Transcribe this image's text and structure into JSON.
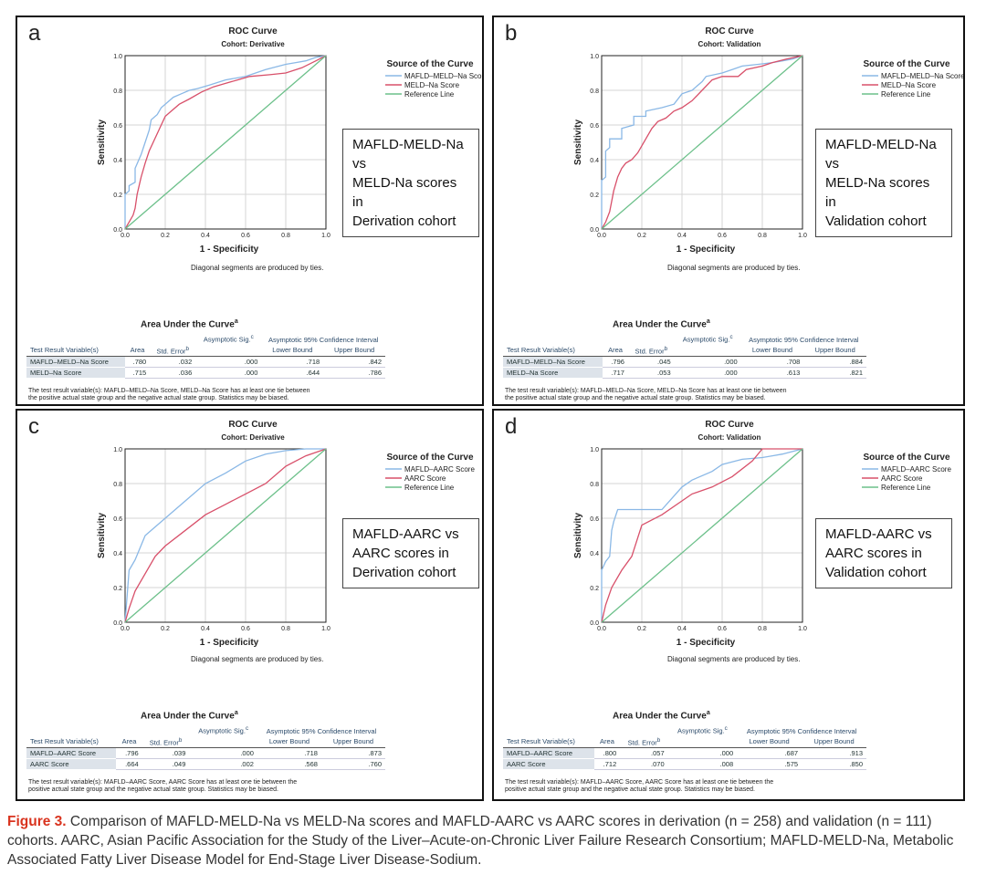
{
  "chart_data": [
    {
      "panel": "a",
      "type": "line",
      "title": "ROC Curve",
      "subtitle": "Cohort: Derivative",
      "xlabel": "1 - Specificity",
      "ylabel": "Sensitivity",
      "xlim": [
        0,
        1
      ],
      "ylim": [
        0,
        1
      ],
      "ticks": [
        "0.0",
        "0.2",
        "0.4",
        "0.6",
        "0.8",
        "1.0"
      ],
      "legend_title": "Source of the Curve",
      "note": "Diagonal segments are produced by ties.",
      "callout": [
        "MAFLD-MELD-Na vs",
        "MELD-Na scores in",
        "Derivation cohort"
      ],
      "series": [
        {
          "name": "MAFLD–MELD–Na Score",
          "color": "#8ab8e6",
          "x": [
            0,
            0,
            0.02,
            0.02,
            0.05,
            0.05,
            0.08,
            0.1,
            0.12,
            0.13,
            0.16,
            0.18,
            0.2,
            0.24,
            0.28,
            0.32,
            0.36,
            0.42,
            0.5,
            0.6,
            0.7,
            0.8,
            0.85,
            0.9,
            0.95,
            1
          ],
          "y": [
            0,
            0.2,
            0.22,
            0.25,
            0.27,
            0.35,
            0.43,
            0.5,
            0.57,
            0.63,
            0.66,
            0.7,
            0.72,
            0.76,
            0.78,
            0.8,
            0.81,
            0.83,
            0.86,
            0.88,
            0.92,
            0.95,
            0.96,
            0.97,
            0.99,
            1
          ]
        },
        {
          "name": "MELD–Na Score",
          "color": "#d8506a",
          "x": [
            0,
            0.02,
            0.04,
            0.05,
            0.06,
            0.08,
            0.1,
            0.12,
            0.14,
            0.16,
            0.18,
            0.2,
            0.23,
            0.27,
            0.32,
            0.38,
            0.44,
            0.5,
            0.56,
            0.62,
            0.72,
            0.8,
            0.88,
            0.95,
            1
          ],
          "y": [
            0,
            0.04,
            0.08,
            0.12,
            0.2,
            0.3,
            0.38,
            0.45,
            0.5,
            0.55,
            0.6,
            0.65,
            0.68,
            0.72,
            0.75,
            0.79,
            0.82,
            0.84,
            0.86,
            0.88,
            0.89,
            0.9,
            0.93,
            0.97,
            1
          ]
        },
        {
          "name": "Reference Line",
          "color": "#6cc08a",
          "x": [
            0,
            1
          ],
          "y": [
            0,
            1
          ]
        }
      ],
      "auc_title": "Area Under the Curve",
      "auc_rows": [
        {
          "label": "MAFLD–MELD–Na Score",
          "area": ".780",
          "se": ".032",
          "sig": ".000",
          "lower": ".718",
          "upper": ".842"
        },
        {
          "label": "MELD–Na Score",
          "area": ".715",
          "se": ".036",
          "sig": ".000",
          "lower": ".644",
          "upper": ".786"
        }
      ],
      "footnote": [
        "The test result variable(s): MAFLD–MELD–Na Score, MELD–Na Score has at least one tie between",
        "the positive actual state group and the negative actual state group. Statistics may be biased."
      ]
    },
    {
      "panel": "b",
      "type": "line",
      "title": "ROC Curve",
      "subtitle": "Cohort: Validation",
      "xlabel": "1 - Specificity",
      "ylabel": "Sensitivity",
      "xlim": [
        0,
        1
      ],
      "ylim": [
        0,
        1
      ],
      "ticks": [
        "0.0",
        "0.2",
        "0.4",
        "0.6",
        "0.8",
        "1.0"
      ],
      "legend_title": "Source of the Curve",
      "note": "Diagonal segments are produced by ties.",
      "callout": [
        "MAFLD-MELD-Na vs",
        "MELD-Na scores in",
        "Validation cohort"
      ],
      "series": [
        {
          "name": "MAFLD–MELD–Na Score",
          "color": "#8ab8e6",
          "x": [
            0,
            0,
            0.02,
            0.02,
            0.04,
            0.04,
            0.1,
            0.1,
            0.16,
            0.16,
            0.22,
            0.22,
            0.3,
            0.36,
            0.4,
            0.45,
            0.5,
            0.52,
            0.6,
            0.65,
            0.7,
            0.78,
            0.85,
            0.9,
            0.95,
            1
          ],
          "y": [
            0,
            0.28,
            0.3,
            0.45,
            0.47,
            0.52,
            0.52,
            0.58,
            0.6,
            0.65,
            0.65,
            0.68,
            0.7,
            0.72,
            0.78,
            0.8,
            0.85,
            0.88,
            0.9,
            0.92,
            0.94,
            0.95,
            0.96,
            0.97,
            0.98,
            1
          ]
        },
        {
          "name": "MELD–Na Score",
          "color": "#d8506a",
          "x": [
            0,
            0.02,
            0.04,
            0.06,
            0.08,
            0.1,
            0.12,
            0.15,
            0.18,
            0.2,
            0.22,
            0.25,
            0.28,
            0.32,
            0.36,
            0.4,
            0.45,
            0.5,
            0.55,
            0.6,
            0.68,
            0.72,
            0.8,
            0.85,
            0.92,
            1
          ],
          "y": [
            0,
            0.04,
            0.1,
            0.22,
            0.3,
            0.35,
            0.38,
            0.4,
            0.44,
            0.48,
            0.52,
            0.58,
            0.62,
            0.64,
            0.68,
            0.7,
            0.74,
            0.8,
            0.86,
            0.88,
            0.88,
            0.92,
            0.94,
            0.96,
            0.98,
            1
          ]
        },
        {
          "name": "Reference Line",
          "color": "#6cc08a",
          "x": [
            0,
            1
          ],
          "y": [
            0,
            1
          ]
        }
      ],
      "auc_title": "Area Under the Curve",
      "auc_rows": [
        {
          "label": "MAFLD–MELD–Na Score",
          "area": ".796",
          "se": ".045",
          "sig": ".000",
          "lower": ".708",
          "upper": ".884"
        },
        {
          "label": "MELD–Na Score",
          "area": ".717",
          "se": ".053",
          "sig": ".000",
          "lower": ".613",
          "upper": ".821"
        }
      ],
      "footnote": [
        "The test result variable(s): MAFLD–MELD–Na Score, MELD–Na Score has at least one tie between",
        "the positive actual state group and the negative actual state group. Statistics may be biased."
      ]
    },
    {
      "panel": "c",
      "type": "line",
      "title": "ROC Curve",
      "subtitle": "Cohort: Derivative",
      "xlabel": "1 - Specificity",
      "ylabel": "Sensitivity",
      "xlim": [
        0,
        1
      ],
      "ylim": [
        0,
        1
      ],
      "ticks": [
        "0.0",
        "0.2",
        "0.4",
        "0.6",
        "0.8",
        "1.0"
      ],
      "legend_title": "Source of the Curve",
      "note": "Diagonal segments are produced by ties.",
      "callout": [
        "MAFLD-AARC vs",
        "AARC scores in",
        "Derivation cohort"
      ],
      "series": [
        {
          "name": "MAFLD–AARC Score",
          "color": "#8ab8e6",
          "x": [
            0,
            0.02,
            0.05,
            0.1,
            0.15,
            0.2,
            0.3,
            0.4,
            0.5,
            0.6,
            0.7,
            0.8,
            0.9,
            1
          ],
          "y": [
            0,
            0.3,
            0.36,
            0.5,
            0.55,
            0.6,
            0.7,
            0.8,
            0.86,
            0.93,
            0.97,
            0.99,
            1,
            1
          ]
        },
        {
          "name": "AARC Score",
          "color": "#d8506a",
          "x": [
            0,
            0.02,
            0.05,
            0.1,
            0.15,
            0.2,
            0.3,
            0.4,
            0.5,
            0.6,
            0.7,
            0.8,
            0.9,
            1
          ],
          "y": [
            0,
            0.08,
            0.18,
            0.28,
            0.38,
            0.44,
            0.53,
            0.62,
            0.68,
            0.74,
            0.8,
            0.9,
            0.96,
            1
          ]
        },
        {
          "name": "Reference Line",
          "color": "#6cc08a",
          "x": [
            0,
            1
          ],
          "y": [
            0,
            1
          ]
        }
      ],
      "auc_title": "Area Under the Curve",
      "auc_rows": [
        {
          "label": "MAFLD–AARC Score",
          "area": ".796",
          "se": ".039",
          "sig": ".000",
          "lower": ".718",
          "upper": ".873"
        },
        {
          "label": "AARC Score",
          "area": ".664",
          "se": ".049",
          "sig": ".002",
          "lower": ".568",
          "upper": ".760"
        }
      ],
      "footnote": [
        "The test result variable(s): MAFLD–AARC Score, AARC Score has at least one tie between the",
        "positive actual state group and the negative actual state group. Statistics may be biased."
      ]
    },
    {
      "panel": "d",
      "type": "line",
      "title": "ROC Curve",
      "subtitle": "Cohort: Validation",
      "xlabel": "1 - Specificity",
      "ylabel": "Sensitivity",
      "xlim": [
        0,
        1
      ],
      "ylim": [
        0,
        1
      ],
      "ticks": [
        "0.0",
        "0.2",
        "0.4",
        "0.6",
        "0.8",
        "1.0"
      ],
      "legend_title": "Source of the Curve",
      "note": "Diagonal segments are produced by ties.",
      "callout": [
        "MAFLD-AARC vs",
        "AARC scores in",
        "Validation cohort"
      ],
      "series": [
        {
          "name": "MAFLD–AARC Score",
          "color": "#8ab8e6",
          "x": [
            0,
            0,
            0.02,
            0.04,
            0.05,
            0.06,
            0.08,
            0.1,
            0.2,
            0.3,
            0.4,
            0.45,
            0.55,
            0.6,
            0.7,
            0.8,
            0.85,
            0.9,
            1
          ],
          "y": [
            0,
            0.3,
            0.35,
            0.38,
            0.53,
            0.58,
            0.65,
            0.65,
            0.65,
            0.65,
            0.78,
            0.82,
            0.87,
            0.91,
            0.94,
            0.95,
            0.96,
            0.97,
            1
          ]
        },
        {
          "name": "AARC Score",
          "color": "#d8506a",
          "x": [
            0,
            0.02,
            0.05,
            0.1,
            0.15,
            0.2,
            0.3,
            0.4,
            0.45,
            0.55,
            0.65,
            0.75,
            0.8,
            0.85,
            0.9,
            1
          ],
          "y": [
            0,
            0.1,
            0.2,
            0.3,
            0.38,
            0.56,
            0.62,
            0.7,
            0.74,
            0.78,
            0.84,
            0.93,
            1,
            1,
            1,
            1
          ]
        },
        {
          "name": "Reference Line",
          "color": "#6cc08a",
          "x": [
            0,
            1
          ],
          "y": [
            0,
            1
          ]
        }
      ],
      "auc_title": "Area Under the Curve",
      "auc_rows": [
        {
          "label": "MAFLD–AARC Score",
          "area": ".800",
          "se": ".057",
          "sig": ".000",
          "lower": ".687",
          "upper": ".913"
        },
        {
          "label": "AARC Score",
          "area": ".712",
          "se": ".070",
          "sig": ".008",
          "lower": ".575",
          "upper": ".850"
        }
      ],
      "footnote": [
        "The test result variable(s): MAFLD–AARC Score, AARC Score has at least one tie between the",
        "positive actual state group and the negative actual state group. Statistics may be biased."
      ]
    }
  ],
  "table_headers": {
    "variable": "Test Result Variable(s)",
    "area": "Area",
    "se": "Std. Error",
    "se_sup": "b",
    "sig": "Asymptotic Sig.",
    "sig_sup": "c",
    "ci": "Asymptotic 95% Confidence Interval",
    "lower": "Lower Bound",
    "upper": "Upper Bound",
    "title_sup": "a"
  },
  "caption": {
    "label": "Figure 3.",
    "text": "Comparison of MAFLD-MELD-Na vs MELD-Na scores and MAFLD-AARC vs AARC scores in derivation (n = 258) and validation (n = 111) cohorts. AARC, Asian Pacific Association for the Study of the Liver–Acute-on-Chronic Liver Failure Research Consortium; MAFLD-MELD-Na, Metabolic Associated Fatty Liver Disease Model for End-Stage Liver Disease-Sodium."
  }
}
